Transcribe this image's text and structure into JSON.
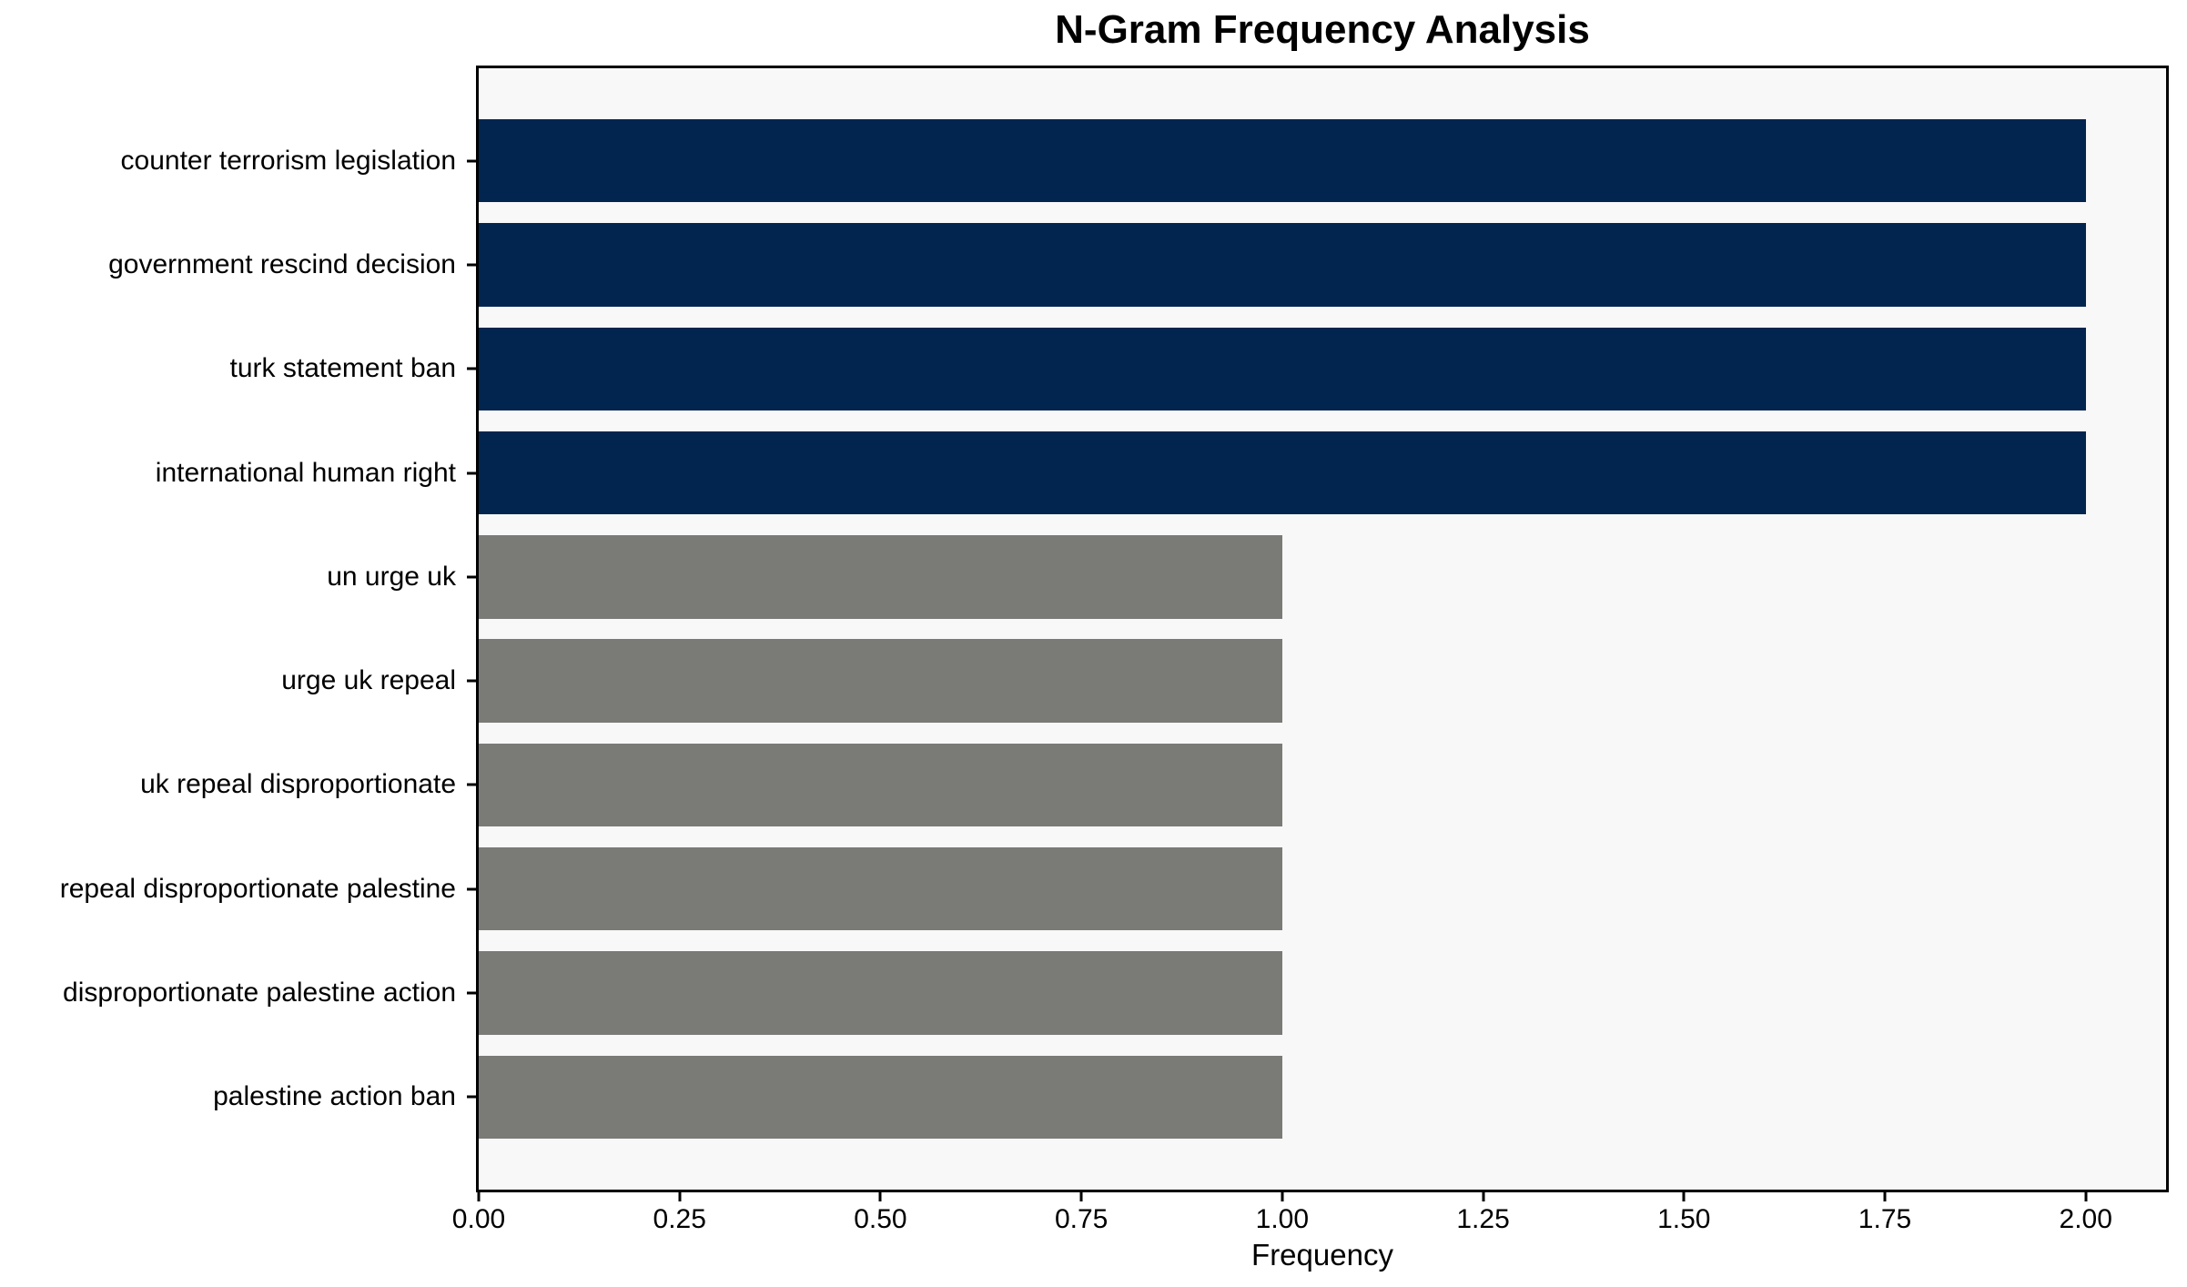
{
  "title": "N-Gram Frequency Analysis",
  "chart_data": {
    "type": "bar",
    "orientation": "horizontal",
    "title": "N-Gram Frequency Analysis",
    "xlabel": "Frequency",
    "ylabel": "",
    "categories": [
      "counter terrorism legislation",
      "government rescind decision",
      "turk statement ban",
      "international human right",
      "un urge uk",
      "urge uk repeal",
      "uk repeal disproportionate",
      "repeal disproportionate palestine",
      "disproportionate palestine action",
      "palestine action ban"
    ],
    "values": [
      2,
      2,
      2,
      2,
      1,
      1,
      1,
      1,
      1,
      1
    ],
    "bar_colors": [
      "#02254f",
      "#02254f",
      "#02254f",
      "#02254f",
      "#7a7a77",
      "#7a7a77",
      "#7a7a77",
      "#7a7a77",
      "#7a7a77",
      "#7a7a77"
    ],
    "xlim": [
      0,
      2.1
    ],
    "xticks": {
      "values": [
        0,
        0.25,
        0.5,
        0.75,
        1.0,
        1.25,
        1.5,
        1.75,
        2.0
      ],
      "labels": [
        "0.00",
        "0.25",
        "0.50",
        "0.75",
        "1.00",
        "1.25",
        "1.50",
        "1.75",
        "2.00"
      ]
    },
    "grid": false,
    "legend": "none",
    "plot_background": "#f8f8f8",
    "figure_background": "#ffffff",
    "accent_colors": {
      "navy": "#02254f",
      "gray": "#7a7a77"
    }
  }
}
